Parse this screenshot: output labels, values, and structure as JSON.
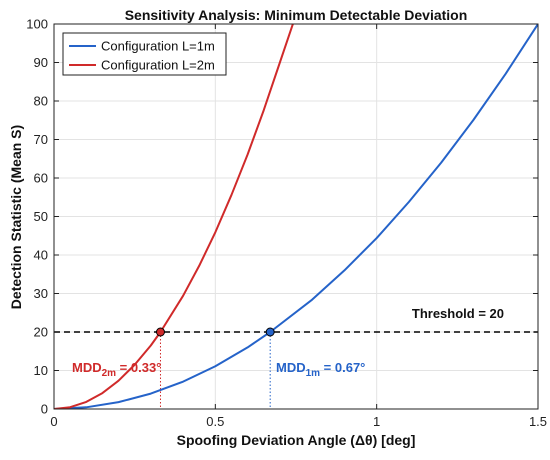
{
  "chart_data": {
    "type": "line",
    "title": "Sensitivity Analysis: Minimum Detectable Deviation",
    "xlabel": "Spoofing Deviation Angle (Δθ) [deg]",
    "ylabel": "Detection Statistic (Mean S)",
    "xlim": [
      0,
      1.5
    ],
    "ylim": [
      0,
      100
    ],
    "x_ticks": [
      0,
      0.5,
      1,
      1.5
    ],
    "x_tick_labels": [
      "0",
      "0.5",
      "1",
      "1.5"
    ],
    "y_ticks": [
      0,
      10,
      20,
      30,
      40,
      50,
      60,
      70,
      80,
      90,
      100
    ],
    "y_tick_labels": [
      "0",
      "10",
      "20",
      "30",
      "40",
      "50",
      "60",
      "70",
      "80",
      "90",
      "100"
    ],
    "grid": true,
    "legend_position": "top-left",
    "series": [
      {
        "name": "Configuration L=1m",
        "color": "#2563c9",
        "x": [
          0,
          0.1,
          0.2,
          0.3,
          0.4,
          0.5,
          0.6,
          0.67,
          0.8,
          0.9,
          1.0,
          1.1,
          1.2,
          1.3,
          1.4,
          1.5
        ],
        "y": [
          0,
          0.44,
          1.78,
          4.0,
          7.11,
          11.1,
          16.0,
          20.0,
          28.4,
          36.0,
          44.4,
          53.8,
          64.0,
          75.1,
          87.1,
          100
        ]
      },
      {
        "name": "Configuration L=2m",
        "color": "#d02a2a",
        "x": [
          0,
          0.05,
          0.1,
          0.15,
          0.2,
          0.25,
          0.3,
          0.33,
          0.4,
          0.45,
          0.5,
          0.55,
          0.6,
          0.65,
          0.7
        ],
        "y": [
          0,
          0.46,
          1.84,
          4.13,
          7.35,
          11.5,
          16.5,
          20.0,
          29.4,
          37.2,
          45.9,
          55.6,
          66.1,
          77.6,
          90.0
        ]
      }
    ],
    "threshold": {
      "value": 20,
      "label": "Threshold = 20"
    },
    "markers": [
      {
        "x": 0.33,
        "y": 20,
        "color": "#d02a2a"
      },
      {
        "x": 0.67,
        "y": 20,
        "color": "#2563c9"
      }
    ],
    "annotations": [
      {
        "prefix": "MDD",
        "subscript": "2m",
        "suffix": " = 0.33°",
        "color": "#d02a2a"
      },
      {
        "prefix": "MDD",
        "subscript": "1m",
        "suffix": " = 0.67°",
        "color": "#2563c9"
      }
    ]
  }
}
